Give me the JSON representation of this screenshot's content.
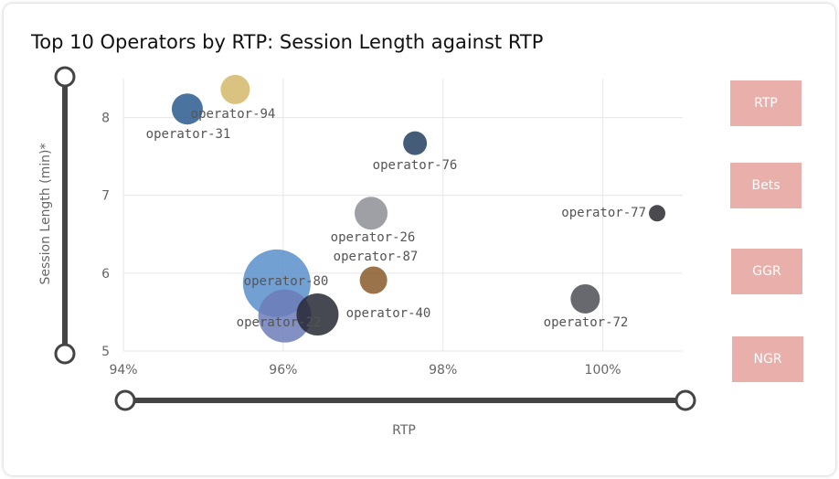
{
  "title": "Top 10 Operators by RTP: Session Length against RTP",
  "buttons": [
    {
      "label": "RTP"
    },
    {
      "label": "Bets"
    },
    {
      "label": "GGR"
    },
    {
      "label": "NGR"
    }
  ],
  "chart_data": {
    "type": "scatter",
    "title": "Top 10 Operators by RTP: Session Length against RTP",
    "xlabel": "RTP",
    "ylabel": "Session Length (min)*",
    "xlim": [
      94,
      101
    ],
    "ylim": [
      5,
      8.5
    ],
    "x_ticks": [
      "94%",
      "96%",
      "98%",
      "100%"
    ],
    "y_ticks": [
      "5",
      "6",
      "7",
      "8"
    ],
    "grid": true,
    "points": [
      {
        "label": "operator-94",
        "x": 95.4,
        "y": 8.36,
        "color": "#d4b86a"
      },
      {
        "label": "operator-31",
        "x": 94.8,
        "y": 8.11,
        "color": "#2b5a8e"
      },
      {
        "label": "operator-76",
        "x": 97.65,
        "y": 7.67,
        "color": "#243f62"
      },
      {
        "label": "operator-77",
        "x": 100.68,
        "y": 6.77,
        "color": "#2a2a30"
      },
      {
        "label": "operator-26",
        "x": 97.1,
        "y": 6.77,
        "color": "#8e8f96"
      },
      {
        "label": "operator-87",
        "x": 97.13,
        "y": 5.91,
        "color": "#8a5a2c"
      },
      {
        "label": "operator-80",
        "x": 95.92,
        "y": 5.87,
        "color": "#5b8fca"
      },
      {
        "label": "operator-22",
        "x": 96.02,
        "y": 5.45,
        "color": "#6c7cba"
      },
      {
        "label": "operator-40",
        "x": 96.43,
        "y": 5.47,
        "color": "#262834"
      },
      {
        "label": "operator-72",
        "x": 99.78,
        "y": 5.67,
        "color": "#4e4f56"
      }
    ]
  }
}
